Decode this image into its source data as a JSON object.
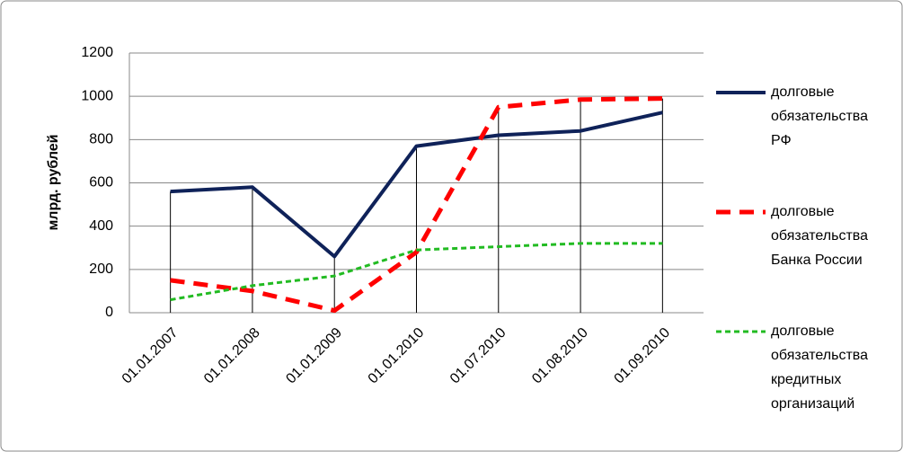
{
  "chart_data": {
    "type": "line",
    "y_label": "млрд. рублей",
    "categories": [
      "01.01.2007",
      "01.01.2008",
      "01.01.2009",
      "01.01.2010",
      "01.07.2010",
      "01.08.2010",
      "01.09.2010"
    ],
    "series": [
      {
        "name": "долговые обязательства РФ",
        "color": "#0f2259",
        "dash": "solid",
        "values": [
          560,
          580,
          260,
          770,
          820,
          840,
          925
        ]
      },
      {
        "name": "долговые обязательства Банка России",
        "color": "#ff0000",
        "dash": "long",
        "values": [
          150,
          100,
          10,
          280,
          950,
          985,
          990
        ]
      },
      {
        "name": "долговые обязательства кредитных организаций",
        "color": "#22bb22",
        "dash": "short",
        "values": [
          60,
          125,
          170,
          290,
          305,
          320,
          320
        ]
      }
    ],
    "ylim": [
      0,
      1200
    ],
    "yticks": [
      0,
      200,
      400,
      600,
      800,
      1000,
      1200
    ],
    "grid": true,
    "drop_lines": true,
    "legend": "right"
  }
}
